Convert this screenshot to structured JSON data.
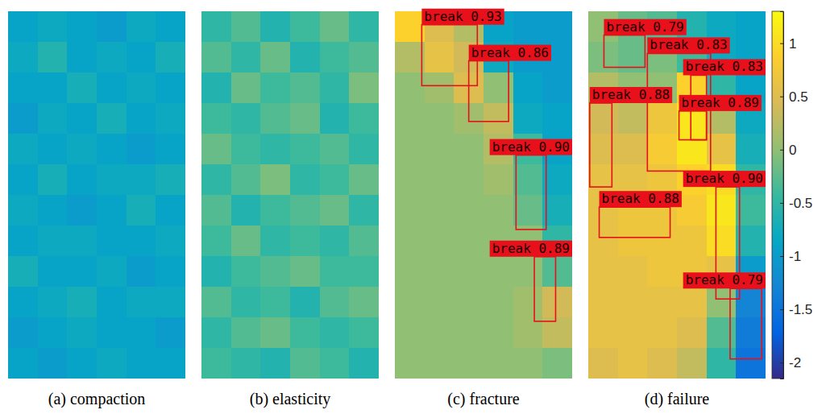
{
  "chart_data": [
    {
      "type": "heatmap",
      "title": "(a) compaction",
      "xlim": [
        0,
        6
      ],
      "ylim": [
        0,
        12
      ],
      "tick_labels": false,
      "cells": [
        [
          -0.9,
          -0.8,
          -0.9,
          -1.0,
          -0.8,
          -0.9
        ],
        [
          -0.8,
          -0.6,
          -0.9,
          -0.8,
          -0.9,
          -0.7
        ],
        [
          -0.9,
          -0.9,
          -0.7,
          -0.9,
          -0.8,
          -0.9
        ],
        [
          -1.0,
          -0.8,
          -0.9,
          -0.7,
          -0.9,
          -0.8
        ],
        [
          -0.8,
          -0.9,
          -0.8,
          -0.9,
          -1.0,
          -0.9
        ],
        [
          -0.9,
          -0.7,
          -0.9,
          -0.8,
          -0.8,
          -0.7
        ],
        [
          -0.8,
          -0.9,
          -1.0,
          -0.9,
          -0.7,
          -0.9
        ],
        [
          -0.9,
          -0.8,
          -0.8,
          -0.9,
          -0.9,
          -0.8
        ],
        [
          -0.7,
          -0.9,
          -0.9,
          -0.8,
          -1.0,
          -0.9
        ],
        [
          -0.9,
          -0.8,
          -0.7,
          -0.9,
          -0.8,
          -0.8
        ],
        [
          -1.0,
          -0.9,
          -0.8,
          -0.9,
          -0.9,
          -1.0
        ],
        [
          -0.9,
          -1.0,
          -0.9,
          -0.8,
          -0.9,
          -0.9
        ]
      ],
      "boxes": []
    },
    {
      "type": "heatmap",
      "title": "(b) elasticity",
      "xlim": [
        0,
        6
      ],
      "ylim": [
        0,
        12
      ],
      "tick_labels": false,
      "cells": [
        [
          -0.5,
          -0.3,
          -0.6,
          -0.4,
          -0.2,
          -0.5
        ],
        [
          -0.3,
          -0.5,
          -0.2,
          -0.6,
          -0.4,
          -0.3
        ],
        [
          -0.6,
          -0.2,
          -0.4,
          -0.3,
          -0.5,
          -0.1
        ],
        [
          -0.4,
          -0.5,
          -0.3,
          -0.2,
          -0.6,
          -0.4
        ],
        [
          -0.2,
          -0.4,
          -0.5,
          -0.4,
          -0.3,
          -0.5
        ],
        [
          -0.5,
          -0.3,
          -0.1,
          -0.5,
          -0.4,
          -0.2
        ],
        [
          -0.3,
          -0.6,
          -0.4,
          -0.3,
          -0.2,
          -0.5
        ],
        [
          -0.4,
          -0.2,
          -0.5,
          -0.4,
          -0.5,
          -0.3
        ],
        [
          -0.6,
          -0.4,
          -0.3,
          -0.2,
          -0.4,
          -0.4
        ],
        [
          -0.3,
          -0.5,
          -0.4,
          -0.6,
          -0.3,
          -0.2
        ],
        [
          -0.5,
          -0.3,
          -0.2,
          -0.4,
          -0.5,
          -0.4
        ],
        [
          -0.4,
          -0.5,
          -0.6,
          -0.3,
          -0.4,
          -0.6
        ]
      ],
      "boxes": []
    },
    {
      "type": "heatmap",
      "title": "(c) fracture",
      "xlim": [
        0,
        6
      ],
      "ylim": [
        0,
        12
      ],
      "tick_labels": false,
      "cells": [
        [
          0.9,
          0.5,
          0.2,
          -0.9,
          -1.0,
          -1.0
        ],
        [
          0.2,
          0.6,
          0.4,
          -0.8,
          -1.0,
          -1.0
        ],
        [
          0.0,
          0.1,
          0.5,
          0.0,
          -0.9,
          -1.0
        ],
        [
          0.0,
          0.0,
          0.1,
          0.3,
          -0.8,
          -0.9
        ],
        [
          0.0,
          0.0,
          0.0,
          0.2,
          -0.4,
          -0.9
        ],
        [
          0.0,
          0.0,
          0.0,
          0.1,
          -0.3,
          -0.8
        ],
        [
          0.0,
          0.0,
          0.0,
          0.0,
          -0.2,
          -0.7
        ],
        [
          0.0,
          0.0,
          0.0,
          0.0,
          0.0,
          -0.5
        ],
        [
          0.0,
          0.0,
          0.0,
          0.0,
          0.0,
          -0.3
        ],
        [
          0.0,
          0.0,
          0.0,
          0.0,
          0.1,
          0.4
        ],
        [
          0.0,
          0.0,
          0.0,
          0.0,
          0.1,
          0.3
        ],
        [
          0.0,
          0.0,
          0.0,
          0.0,
          0.0,
          -0.1
        ]
      ],
      "boxes": [
        {
          "label": "break 0.93",
          "x": [
            0.91,
            2.79
          ],
          "y": [
            0.44,
            2.43
          ]
        },
        {
          "label": "break 0.86",
          "x": [
            2.5,
            3.85
          ],
          "y": [
            1.62,
            3.6
          ]
        },
        {
          "label": "break 0.90",
          "x": [
            4.1,
            5.12
          ],
          "y": [
            4.7,
            7.13
          ]
        },
        {
          "label": "break 0.89",
          "x": [
            4.72,
            5.44
          ],
          "y": [
            8.02,
            10.13
          ]
        }
      ]
    },
    {
      "type": "heatmap",
      "title": "(d) failure",
      "xlim": [
        0,
        6
      ],
      "ylim": [
        0,
        12
      ],
      "tick_labels": false,
      "cells": [
        [
          0.0,
          -0.2,
          -0.3,
          -0.6,
          -0.8,
          -0.9
        ],
        [
          -0.1,
          -0.2,
          -0.1,
          -0.4,
          -0.8,
          -0.9
        ],
        [
          0.2,
          0.0,
          0.0,
          0.9,
          -0.5,
          -0.9
        ],
        [
          0.4,
          0.3,
          0.7,
          1.1,
          0.2,
          -0.8
        ],
        [
          0.5,
          0.5,
          0.8,
          1.1,
          0.6,
          -0.7
        ],
        [
          0.6,
          0.6,
          0.7,
          0.9,
          1.0,
          -0.5
        ],
        [
          0.6,
          0.7,
          0.7,
          0.8,
          1.1,
          -0.4
        ],
        [
          0.6,
          0.7,
          0.7,
          0.7,
          1.0,
          -0.6
        ],
        [
          0.6,
          0.6,
          0.7,
          0.7,
          0.6,
          -1.0
        ],
        [
          0.6,
          0.6,
          0.6,
          0.6,
          0.0,
          -1.3
        ],
        [
          0.6,
          0.6,
          0.6,
          0.5,
          -0.3,
          -1.4
        ],
        [
          0.5,
          0.6,
          0.5,
          0.3,
          -0.5,
          -1.5
        ]
      ],
      "boxes": [
        {
          "label": "break 0.79",
          "x": [
            0.53,
            1.92
          ],
          "y": [
            0.78,
            1.83
          ]
        },
        {
          "label": "break 0.83",
          "x": [
            2.0,
            4.14
          ],
          "y": [
            1.38,
            5.22
          ]
        },
        {
          "label": "break 0.83",
          "x": [
            3.47,
            4.0
          ],
          "y": [
            2.09,
            4.2
          ]
        },
        {
          "label": "break 0.88",
          "x": [
            0.05,
            0.8
          ],
          "y": [
            3.0,
            5.74
          ]
        },
        {
          "label": "break 0.89",
          "x": [
            3.07,
            4.0
          ],
          "y": [
            3.26,
            4.2
          ]
        },
        {
          "label": "break 0.90",
          "x": [
            4.32,
            5.12
          ],
          "y": [
            5.74,
            9.4
          ]
        },
        {
          "label": "break 0.88",
          "x": [
            0.37,
            2.77
          ],
          "y": [
            6.4,
            7.39
          ]
        },
        {
          "label": "break 0.79",
          "x": [
            4.8,
            5.87
          ],
          "y": [
            9.06,
            11.36
          ]
        }
      ],
      "colorbar": {
        "range": [
          -2.15,
          1.3
        ],
        "ticks": [
          1,
          0.5,
          0,
          -0.5,
          -1,
          -1.5,
          -2
        ]
      }
    }
  ]
}
